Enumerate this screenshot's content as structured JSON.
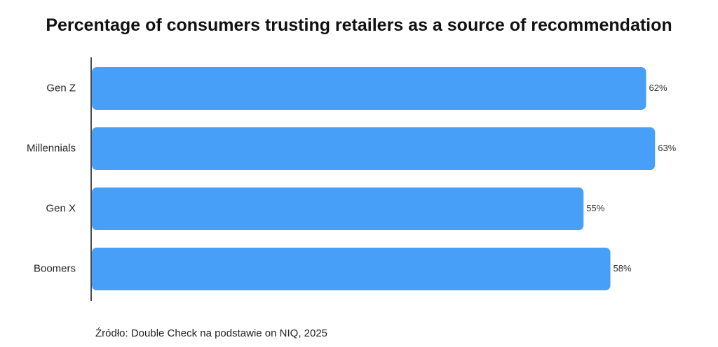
{
  "chart_data": {
    "type": "bar",
    "orientation": "horizontal",
    "title": "Percentage of consumers trusting retailers as a source of recommendation",
    "categories": [
      "Gen Z",
      "Millennials",
      "Gen X",
      "Boomers"
    ],
    "values": [
      62,
      63,
      55,
      58
    ],
    "value_labels": [
      "62%",
      "63%",
      "55%",
      "58%"
    ],
    "unit": "%",
    "bar_color": "#479ff8",
    "grid": false,
    "legend": "none"
  },
  "source": "Źródło: Double Check na podstawie on NIQ, 2025"
}
